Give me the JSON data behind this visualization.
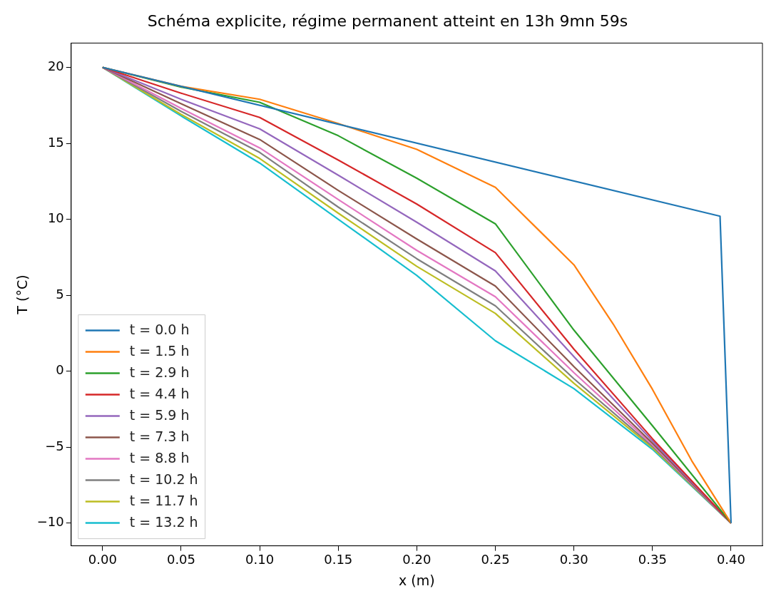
{
  "chart_data": {
    "type": "line",
    "title": "Schéma explicite, régime permanent atteint en 13h 9mn 59s",
    "xlabel": "x (m)",
    "ylabel": "T (°C)",
    "x": [
      0,
      0.05,
      0.1,
      0.15,
      0.2,
      0.25,
      0.3,
      0.35,
      0.4
    ],
    "series": [
      {
        "name": "t = 0.0 h",
        "color": "#1f77b4",
        "x": [
          0,
          0.393,
          0.4
        ],
        "values": [
          20,
          10.2,
          -10
        ]
      },
      {
        "name": "t = 1.5 h",
        "color": "#ff7f0e",
        "x": [
          0,
          0.05,
          0.1,
          0.15,
          0.2,
          0.25,
          0.3,
          0.325,
          0.35,
          0.375,
          0.4
        ],
        "values": [
          20,
          18.75,
          17.9,
          16.3,
          14.6,
          12.1,
          7,
          3.1,
          -1.2,
          -5.9,
          -10
        ]
      },
      {
        "name": "t = 2.9 h",
        "color": "#2ca02c",
        "values": [
          20,
          18.7,
          17.7,
          15.5,
          12.7,
          9.7,
          2.7,
          -3.6,
          -10
        ]
      },
      {
        "name": "t = 4.4 h",
        "color": "#d62728",
        "values": [
          20,
          18.3,
          16.7,
          13.9,
          11,
          7.8,
          1.45,
          -4.45,
          -10
        ]
      },
      {
        "name": "t = 5.9 h",
        "color": "#9467bd",
        "values": [
          20,
          17.9,
          15.95,
          12.9,
          9.8,
          6.6,
          0.95,
          -4.6,
          -10
        ]
      },
      {
        "name": "t = 7.3 h",
        "color": "#8c564b",
        "values": [
          20,
          17.6,
          15.25,
          11.9,
          8.7,
          5.6,
          0.3,
          -4.75,
          -10
        ]
      },
      {
        "name": "t = 8.8 h",
        "color": "#e377c2",
        "values": [
          20,
          17.3,
          14.7,
          11.3,
          7.95,
          4.9,
          -0.1,
          -4.85,
          -10
        ]
      },
      {
        "name": "t = 10.2 h",
        "color": "#7f7f7f",
        "values": [
          20,
          17.1,
          14.4,
          10.8,
          7.4,
          4.3,
          -0.5,
          -4.95,
          -10
        ]
      },
      {
        "name": "t = 11.7 h",
        "color": "#bcbd22",
        "values": [
          20,
          16.9,
          14,
          10.4,
          6.9,
          3.8,
          -0.8,
          -5.05,
          -10
        ]
      },
      {
        "name": "t = 13.2 h",
        "color": "#17becf",
        "values": [
          20,
          16.8,
          13.7,
          10,
          6.3,
          2,
          -1.15,
          -5.15,
          -10
        ]
      }
    ],
    "xlim": [
      -0.02,
      0.42
    ],
    "ylim": [
      -11.5,
      21.6
    ],
    "xticks": [
      {
        "value": 0,
        "label": "0.00"
      },
      {
        "value": 0.05,
        "label": "0.05"
      },
      {
        "value": 0.1,
        "label": "0.10"
      },
      {
        "value": 0.15,
        "label": "0.15"
      },
      {
        "value": 0.2,
        "label": "0.20"
      },
      {
        "value": 0.25,
        "label": "0.25"
      },
      {
        "value": 0.3,
        "label": "0.30"
      },
      {
        "value": 0.35,
        "label": "0.35"
      },
      {
        "value": 0.4,
        "label": "0.40"
      }
    ],
    "yticks": [
      {
        "value": -10,
        "label": "−10"
      },
      {
        "value": -5,
        "label": "−5"
      },
      0,
      5,
      10,
      15,
      20
    ],
    "grid": false,
    "legend": "bottom left",
    "marker": "none",
    "line_style": "solid"
  }
}
